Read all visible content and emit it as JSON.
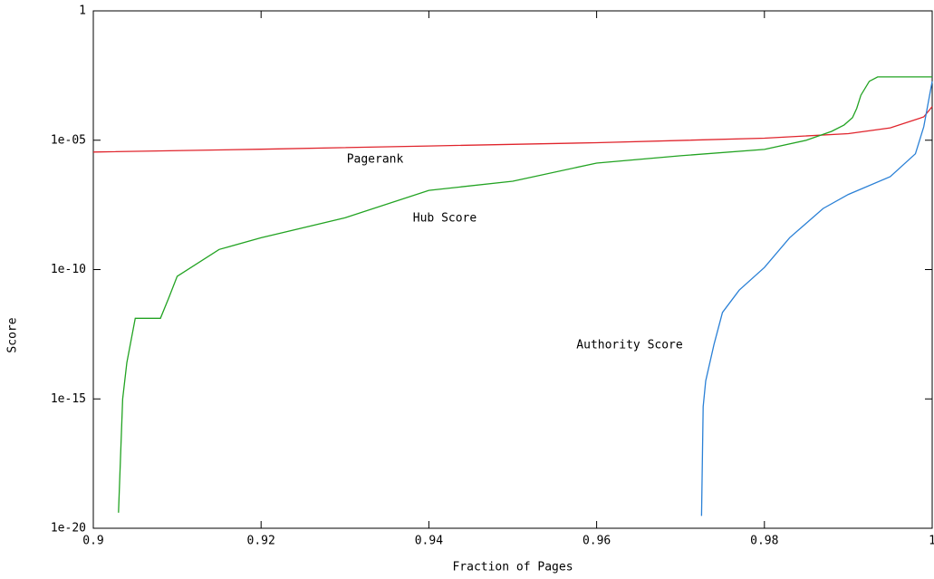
{
  "chart_data": {
    "type": "line",
    "xlabel": "Fraction of Pages",
    "ylabel": "Score",
    "xlim": [
      0.9,
      1
    ],
    "xticks": [
      0.9,
      0.92,
      0.94,
      0.96,
      0.98,
      1
    ],
    "ylim": [
      1e-20,
      1
    ],
    "ylog": true,
    "yticks": [
      1e-20,
      1e-15,
      1e-10,
      {
        "value": 1e-05,
        "label": "1e-05"
      },
      1
    ],
    "series": [
      {
        "name": "Pagerank",
        "color": "#e0242c",
        "x": [
          0.9,
          0.92,
          0.94,
          0.96,
          0.98,
          0.99,
          0.995,
          0.999,
          1
        ],
        "values": [
          3.5e-06,
          4.5e-06,
          6e-06,
          8e-06,
          1.2e-05,
          1.8e-05,
          3e-05,
          8e-05,
          0.0002
        ]
      },
      {
        "name": "Hub Score",
        "color": "#22a322",
        "x": [
          0.903,
          0.9035,
          0.904,
          0.905,
          0.908,
          0.909,
          0.91,
          0.915,
          0.92,
          0.93,
          0.94,
          0.95,
          0.96,
          0.97,
          0.98,
          0.985,
          0.988,
          0.9895,
          0.9905,
          0.991,
          0.9915,
          0.9925,
          0.9935,
          1
        ],
        "values": [
          4e-20,
          1e-15,
          2.5e-14,
          1.3e-12,
          1.3e-12,
          8e-12,
          5.5e-11,
          6e-10,
          1.7e-09,
          1e-08,
          1.15e-07,
          2.6e-07,
          1.3e-06,
          2.5e-06,
          4.4e-06,
          1e-05,
          2.2e-05,
          3.9e-05,
          7.4e-05,
          0.00017,
          0.00055,
          0.0019,
          0.0028,
          0.0028
        ]
      },
      {
        "name": "Authority Score",
        "color": "#2a80d6",
        "x": [
          0.9725,
          0.9727,
          0.973,
          0.974,
          0.975,
          0.977,
          0.98,
          0.983,
          0.987,
          0.99,
          0.995,
          0.998,
          0.999,
          1
        ],
        "values": [
          3e-20,
          5e-16,
          5e-15,
          1.3e-13,
          2.2e-12,
          1.6e-11,
          1.2e-10,
          1.7e-09,
          2.3e-08,
          8e-08,
          3.9e-07,
          3e-06,
          3.3e-05,
          0.0019
        ]
      }
    ]
  }
}
